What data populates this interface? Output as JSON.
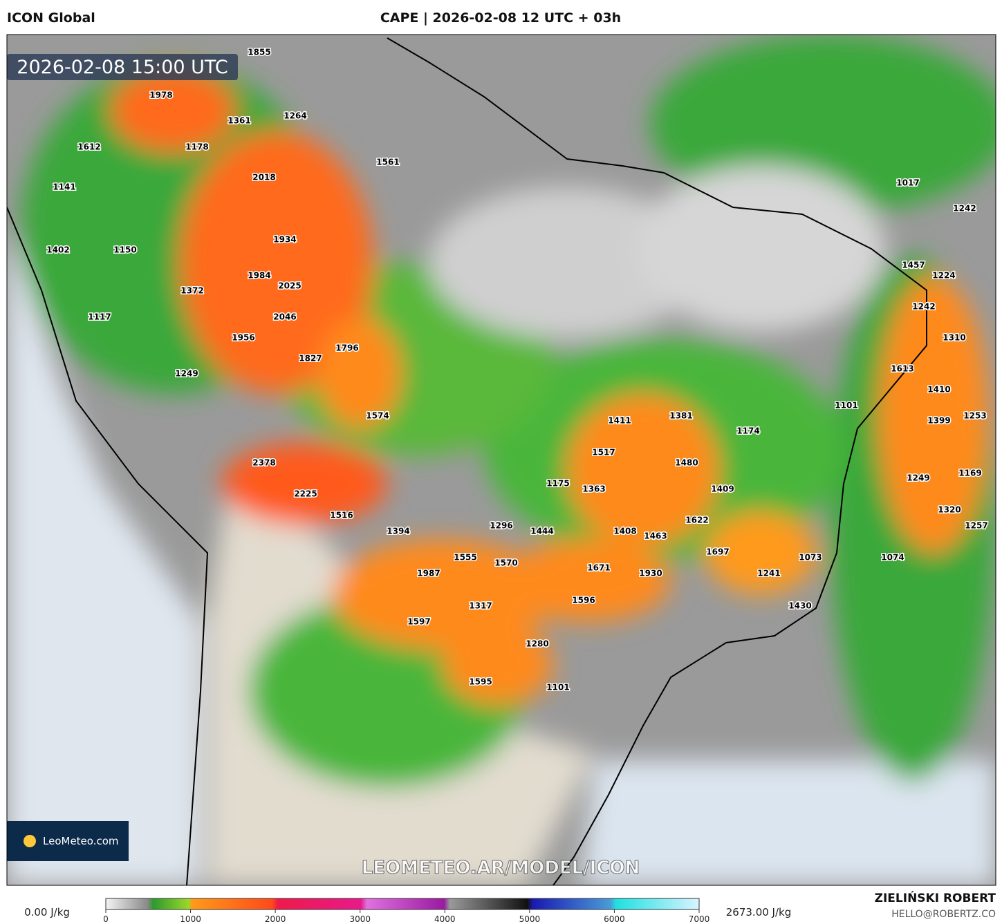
{
  "header": {
    "model": "ICON Global",
    "title": "CAPE | 2026-02-08 12 UTC + 03h"
  },
  "map": {
    "timestamp": "2026-02-08 15:00 UTC",
    "labels": [
      1855,
      1978,
      1361,
      1264,
      1612,
      1178,
      1561,
      2018,
      1141,
      1017,
      1242,
      1402,
      1150,
      1934,
      1457,
      1224,
      1984,
      2025,
      1372,
      1242,
      1117,
      2046,
      1956,
      1310,
      1796,
      1827,
      1249,
      1613,
      1410,
      1101,
      1574,
      1411,
      1381,
      1399,
      1253,
      1174,
      1517,
      2378,
      1480,
      1249,
      1169,
      1175,
      1363,
      1409,
      2225,
      1516,
      1320,
      1622,
      1296,
      1444,
      1408,
      1463,
      1257,
      1394,
      1697,
      1073,
      1074,
      1555,
      1570,
      1987,
      1671,
      1930,
      1241,
      1596,
      1317,
      1430,
      1597,
      1280,
      1595,
      1101
    ],
    "watermark": "LEOMETEO.AR/MODEL/ICON",
    "logo": "LeoMeteo.com"
  },
  "legend": {
    "min_label": "0.00 J/kg",
    "max_label": "2673.00 J/kg",
    "ticks": [
      0,
      1000,
      2000,
      3000,
      4000,
      5000,
      6000,
      7000
    ]
  },
  "credit": {
    "name": "ZIELIŃSKI ROBERT",
    "email": "HELLO@ROBERTZ.CO"
  }
}
